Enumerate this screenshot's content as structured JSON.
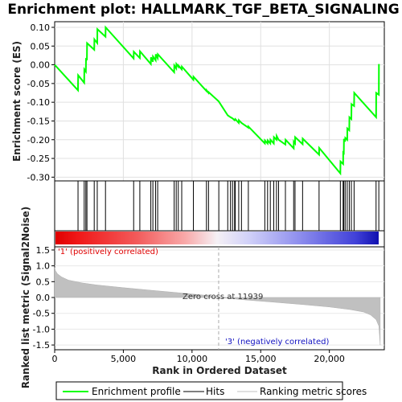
{
  "chart_data": [
    {
      "type": "line",
      "title": "Enrichment plot: HALLMARK_TGF_BETA_SIGNALING",
      "ylabel": "Enrichment score (ES)",
      "xlim": [
        0,
        24000
      ],
      "ylim": [
        -0.31,
        0.115
      ],
      "yticks": [
        "0.10",
        "0.05",
        "0.00",
        "-0.05",
        "-0.10",
        "-0.15",
        "-0.20",
        "-0.25",
        "-0.30"
      ],
      "ytick_values": [
        0.1,
        0.05,
        0.0,
        -0.05,
        -0.1,
        -0.15,
        -0.2,
        -0.25,
        -0.3
      ],
      "series_color": "#00ff00",
      "grid": true,
      "hits": [
        1700,
        2150,
        2270,
        2350,
        2880,
        3100,
        3700,
        5750,
        6200,
        7000,
        7150,
        7350,
        7500,
        8700,
        8850,
        9000,
        9250,
        10100,
        11050,
        11200,
        11950,
        12600,
        12800,
        12950,
        13100,
        13150,
        13400,
        13600,
        14100,
        15300,
        15500,
        15700,
        15950,
        16150,
        16300,
        16800,
        17400,
        17500,
        18050,
        19250,
        20800,
        21000,
        21050,
        21150,
        21300,
        21450,
        21600,
        21800,
        23400,
        23600
      ],
      "es_points": [
        [
          0,
          0.0
        ],
        [
          1700,
          -0.068
        ],
        [
          1710,
          -0.028
        ],
        [
          2150,
          -0.048
        ],
        [
          2160,
          -0.012
        ],
        [
          2270,
          -0.018
        ],
        [
          2280,
          0.018
        ],
        [
          2350,
          0.012
        ],
        [
          2360,
          0.058
        ],
        [
          2880,
          0.04
        ],
        [
          2890,
          0.068
        ],
        [
          3100,
          0.058
        ],
        [
          3110,
          0.095
        ],
        [
          3700,
          0.075
        ],
        [
          3710,
          0.1
        ],
        [
          5750,
          0.017
        ],
        [
          5760,
          0.035
        ],
        [
          6200,
          0.018
        ],
        [
          6210,
          0.036
        ],
        [
          7000,
          0.002
        ],
        [
          7010,
          0.02
        ],
        [
          7150,
          0.008
        ],
        [
          7160,
          0.022
        ],
        [
          7350,
          0.012
        ],
        [
          7360,
          0.028
        ],
        [
          7500,
          0.018
        ],
        [
          7510,
          0.028
        ],
        [
          8700,
          -0.02
        ],
        [
          8710,
          -0.002
        ],
        [
          8850,
          -0.01
        ],
        [
          8860,
          0.002
        ],
        [
          9000,
          -0.005
        ],
        [
          9010,
          -0.002
        ],
        [
          9250,
          -0.012
        ],
        [
          9260,
          -0.005
        ],
        [
          10100,
          -0.04
        ],
        [
          10110,
          -0.032
        ],
        [
          11050,
          -0.07
        ],
        [
          11060,
          -0.068
        ],
        [
          11200,
          -0.075
        ],
        [
          11210,
          -0.073
        ],
        [
          11950,
          -0.098
        ],
        [
          12600,
          -0.135
        ],
        [
          12800,
          -0.14
        ],
        [
          12950,
          -0.143
        ],
        [
          13100,
          -0.148
        ],
        [
          13150,
          -0.145
        ],
        [
          13400,
          -0.155
        ],
        [
          13410,
          -0.148
        ],
        [
          13600,
          -0.155
        ],
        [
          14100,
          -0.168
        ],
        [
          14110,
          -0.165
        ],
        [
          15300,
          -0.21
        ],
        [
          15310,
          -0.202
        ],
        [
          15500,
          -0.21
        ],
        [
          15510,
          -0.202
        ],
        [
          15700,
          -0.21
        ],
        [
          15710,
          -0.2
        ],
        [
          15950,
          -0.21
        ],
        [
          15960,
          -0.193
        ],
        [
          16150,
          -0.2
        ],
        [
          16160,
          -0.19
        ],
        [
          16300,
          -0.2
        ],
        [
          16800,
          -0.213
        ],
        [
          16810,
          -0.2
        ],
        [
          17400,
          -0.223
        ],
        [
          17410,
          -0.205
        ],
        [
          17500,
          -0.21
        ],
        [
          17510,
          -0.193
        ],
        [
          18050,
          -0.212
        ],
        [
          18060,
          -0.197
        ],
        [
          19250,
          -0.24
        ],
        [
          19260,
          -0.222
        ],
        [
          20800,
          -0.29
        ],
        [
          20810,
          -0.258
        ],
        [
          21000,
          -0.265
        ],
        [
          21010,
          -0.23
        ],
        [
          21050,
          -0.24
        ],
        [
          21060,
          -0.198
        ],
        [
          21150,
          -0.205
        ],
        [
          21160,
          -0.195
        ],
        [
          21300,
          -0.2
        ],
        [
          21310,
          -0.17
        ],
        [
          21450,
          -0.175
        ],
        [
          21460,
          -0.14
        ],
        [
          21600,
          -0.145
        ],
        [
          21610,
          -0.105
        ],
        [
          21800,
          -0.11
        ],
        [
          21810,
          -0.075
        ],
        [
          23400,
          -0.14
        ],
        [
          23410,
          -0.075
        ],
        [
          23600,
          -0.08
        ],
        [
          23610,
          0.002
        ]
      ]
    },
    {
      "type": "area",
      "xlabel": "Rank in Ordered Dataset",
      "ylabel": "Ranked list metric (Signal2Noise)",
      "xlim": [
        0,
        24000
      ],
      "ylim": [
        -1.65,
        1.6
      ],
      "xticks": [
        "0",
        "5,000",
        "10,000",
        "15,000",
        "20,000"
      ],
      "xtick_values": [
        0,
        5000,
        10000,
        15000,
        20000
      ],
      "yticks": [
        "1.5",
        "1.0",
        "0.5",
        "0.0",
        "-0.5",
        "-1.0",
        "-1.5"
      ],
      "ytick_values": [
        1.5,
        1.0,
        0.5,
        0.0,
        -0.5,
        -1.0,
        -1.5
      ],
      "metric_points": [
        [
          0,
          0.95
        ],
        [
          50,
          0.85
        ],
        [
          200,
          0.75
        ],
        [
          500,
          0.65
        ],
        [
          1000,
          0.55
        ],
        [
          2000,
          0.46
        ],
        [
          3000,
          0.4
        ],
        [
          5000,
          0.31
        ],
        [
          7000,
          0.23
        ],
        [
          9000,
          0.15
        ],
        [
          11000,
          0.07
        ],
        [
          11939,
          0.0
        ],
        [
          14000,
          -0.08
        ],
        [
          16000,
          -0.15
        ],
        [
          18000,
          -0.22
        ],
        [
          20000,
          -0.3
        ],
        [
          21500,
          -0.38
        ],
        [
          22500,
          -0.46
        ],
        [
          23000,
          -0.55
        ],
        [
          23400,
          -0.7
        ],
        [
          23600,
          -0.9
        ],
        [
          23700,
          -1.5
        ]
      ],
      "annotations": {
        "zero_cross": "Zero cross at 11939",
        "positive": "'1' (positively correlated)",
        "negative": "'3' (negatively correlated)"
      },
      "zero_cross_rank": 11939
    }
  ],
  "legend": {
    "enrichment_profile": "Enrichment profile",
    "hits": "Hits",
    "ranking_metric_scores": "Ranking metric scores"
  }
}
